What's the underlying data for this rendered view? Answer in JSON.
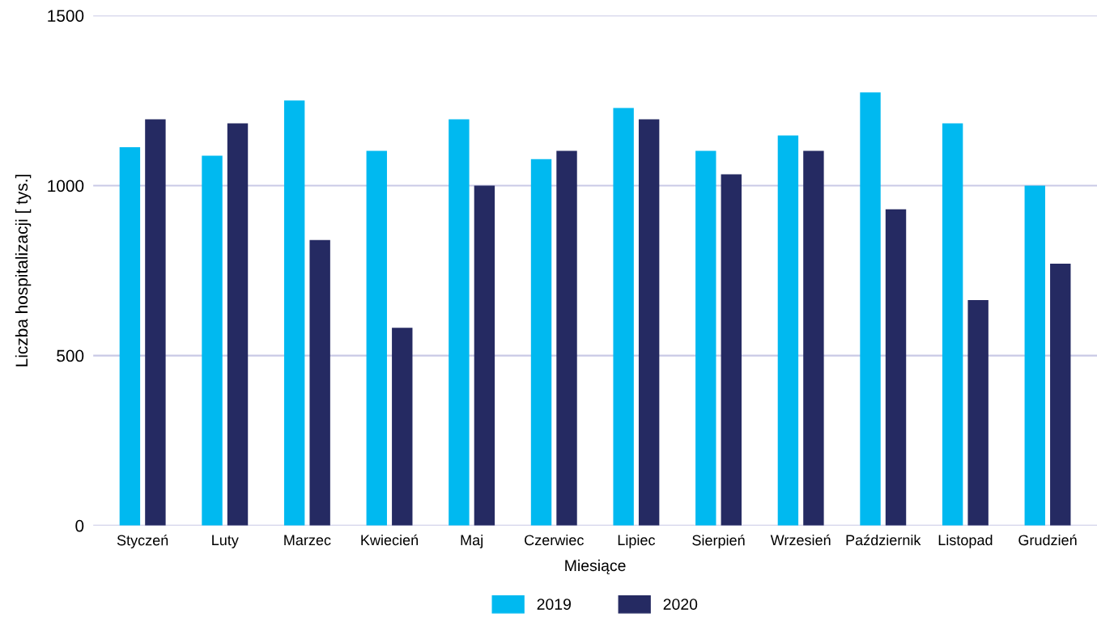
{
  "chart_data": {
    "type": "bar",
    "categories": [
      "Styczeń",
      "Luty",
      "Marzec",
      "Kwiecień",
      "Maj",
      "Czerwiec",
      "Lipiec",
      "Sierpień",
      "Wrzesień",
      "Październik",
      "Listopad",
      "Grudzień"
    ],
    "series": [
      {
        "name": "2019",
        "color": "#00b9f0",
        "values": [
          1113,
          1088,
          1250,
          1102,
          1195,
          1078,
          1228,
          1102,
          1147,
          1274,
          1183,
          1000
        ]
      },
      {
        "name": "2020",
        "color": "#252a62",
        "values": [
          1195,
          1183,
          840,
          582,
          1000,
          1102,
          1195,
          1033,
          1102,
          930,
          663,
          770
        ]
      }
    ],
    "xlabel": "Miesiące",
    "ylabel": "Liczba hospitalizacji [ tys.]",
    "ylim": [
      0,
      1500
    ],
    "yticks": [
      0,
      500,
      1000,
      1500
    ],
    "grid": "y",
    "legend": "bottom"
  }
}
